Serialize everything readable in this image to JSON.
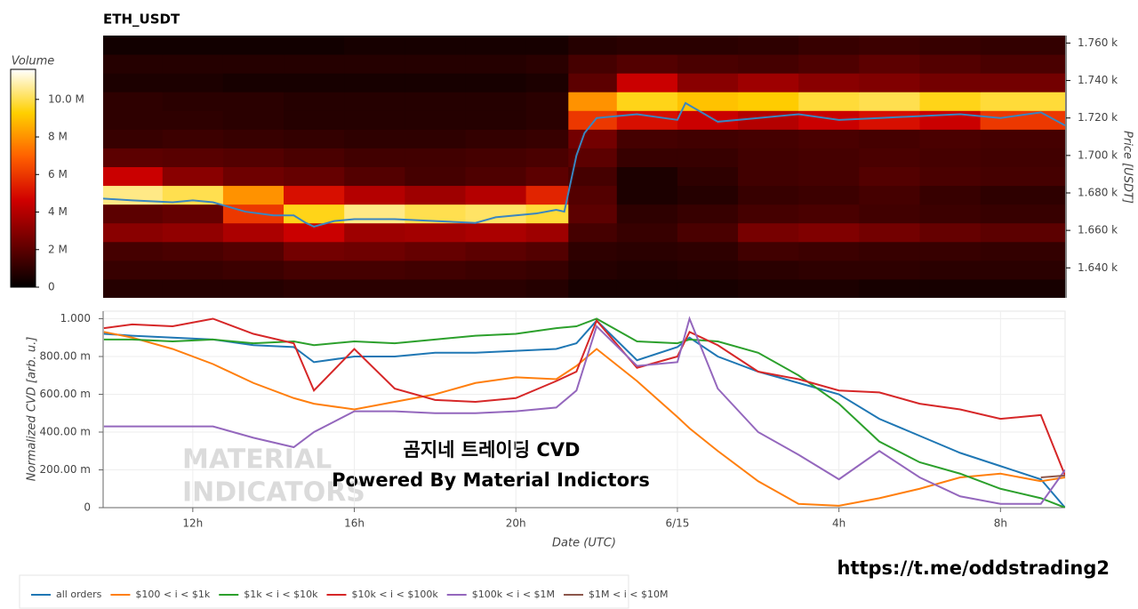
{
  "chart_data": [
    {
      "type": "heatmap",
      "title": "ETH_USDT",
      "ylabel": "Price [USDT]",
      "xlim": [
        9.78,
        33.6
      ],
      "ylim": [
        1624,
        1764
      ],
      "yticks": [
        {
          "value": 1640,
          "label": "1.640 k"
        },
        {
          "value": 1660,
          "label": "1.660 k"
        },
        {
          "value": 1680,
          "label": "1.680 k"
        },
        {
          "value": 1700,
          "label": "1.700 k"
        },
        {
          "value": 1720,
          "label": "1.720 k"
        },
        {
          "value": 1740,
          "label": "1.740 k"
        },
        {
          "value": 1760,
          "label": "1.760 k"
        }
      ],
      "xbins": [
        9.75,
        11.25,
        12.75,
        14.25,
        15.75,
        17.25,
        18.75,
        20.25,
        21.3,
        22.5,
        24,
        25.5,
        27,
        28.5,
        30,
        31.5,
        33.75
      ],
      "ybins": [
        1624,
        1634,
        1644,
        1654,
        1664,
        1674,
        1684,
        1694,
        1704,
        1714,
        1724,
        1734,
        1744,
        1754,
        1764
      ],
      "z": [
        [
          0.8,
          0.8,
          0.8,
          0.9,
          0.9,
          0.9,
          0.9,
          0.8,
          0.5,
          0.5,
          0.5,
          0.6,
          0.6,
          0.5,
          0.5,
          0.5
        ],
        [
          1.2,
          1.2,
          1.3,
          1.5,
          1.5,
          1.4,
          1.3,
          1.2,
          0.8,
          0.7,
          0.8,
          0.9,
          1.0,
          1.0,
          0.9,
          0.9
        ],
        [
          1.5,
          1.6,
          1.8,
          2.5,
          2.4,
          2.2,
          2.0,
          1.8,
          1.0,
          0.9,
          1.0,
          1.4,
          1.3,
          1.2,
          1.2,
          1.1
        ],
        [
          3.0,
          3.2,
          3.8,
          4.5,
          3.5,
          3.6,
          3.8,
          3.5,
          1.5,
          1.2,
          1.6,
          2.6,
          2.8,
          2.5,
          2.2,
          2.0
        ],
        [
          2.0,
          2.2,
          6.0,
          9.5,
          10.5,
          10.0,
          10.2,
          9.8,
          2.0,
          1.0,
          1.2,
          1.5,
          1.6,
          1.4,
          1.3,
          1.2
        ],
        [
          10.5,
          10.0,
          8.0,
          5.0,
          4.0,
          3.5,
          4.0,
          5.5,
          1.8,
          0.6,
          0.8,
          1.2,
          1.3,
          1.5,
          1.2,
          1.0
        ],
        [
          4.5,
          3.0,
          2.4,
          2.2,
          1.8,
          1.5,
          1.7,
          2.0,
          1.5,
          0.6,
          1.0,
          1.4,
          1.5,
          1.8,
          1.6,
          1.5
        ],
        [
          2.0,
          1.9,
          1.8,
          1.6,
          1.4,
          1.4,
          1.5,
          1.6,
          2.0,
          1.2,
          1.2,
          1.4,
          1.5,
          1.6,
          1.5,
          1.4
        ],
        [
          1.2,
          1.3,
          1.2,
          1.1,
          1.0,
          1.0,
          1.1,
          1.2,
          2.5,
          1.5,
          1.4,
          1.5,
          1.6,
          1.5,
          1.6,
          1.5
        ],
        [
          1.0,
          1.0,
          0.9,
          0.8,
          0.8,
          0.8,
          0.8,
          0.9,
          6.0,
          5.0,
          4.5,
          4.0,
          4.5,
          5.0,
          4.5,
          6.0
        ],
        [
          1.0,
          0.9,
          0.9,
          0.8,
          0.8,
          0.8,
          0.8,
          0.9,
          8.0,
          9.5,
          9.0,
          9.2,
          9.8,
          10.0,
          9.5,
          9.8
        ],
        [
          0.6,
          0.6,
          0.5,
          0.5,
          0.5,
          0.5,
          0.5,
          0.6,
          2.0,
          4.5,
          3.0,
          3.5,
          3.0,
          2.8,
          2.5,
          2.5
        ],
        [
          0.8,
          0.8,
          0.8,
          0.8,
          0.8,
          0.8,
          0.8,
          0.9,
          1.5,
          1.8,
          1.6,
          1.5,
          1.7,
          2.0,
          1.8,
          1.6
        ],
        [
          0.4,
          0.4,
          0.4,
          0.4,
          0.5,
          0.5,
          0.5,
          0.5,
          0.8,
          0.9,
          0.9,
          1.0,
          1.2,
          1.3,
          1.2,
          1.1
        ]
      ],
      "colorbar_label": "Volume",
      "clim": [
        0,
        11.6
      ],
      "colorbar_ticks": [
        0,
        {
          "value": 2,
          "label": "2 M"
        },
        {
          "value": 4,
          "label": "4 M"
        },
        {
          "value": 6,
          "label": "6 M"
        },
        {
          "value": 8,
          "label": "8 M"
        },
        {
          "value": 10,
          "label": "10.0 M"
        }
      ],
      "colorscale": [
        "#000000",
        "#6b0000",
        "#d00000",
        "#ff6000",
        "#ffd000",
        "#ffffff"
      ],
      "price_line": {
        "color": "#3a86c0",
        "x": [
          9.78,
          10.5,
          11.5,
          12,
          12.5,
          13.3,
          14,
          14.5,
          14.8,
          15.0,
          15.5,
          16,
          17,
          18,
          19,
          19.5,
          20.5,
          21,
          21.2,
          21.5,
          21.7,
          22,
          23,
          24,
          24.2,
          25,
          26,
          27,
          28,
          29,
          30,
          31,
          32,
          33,
          33.6
        ],
        "values": [
          1677,
          1676,
          1675,
          1676,
          1675,
          1670,
          1668,
          1668,
          1664,
          1662,
          1665,
          1666,
          1666,
          1665,
          1664,
          1667,
          1669,
          1671,
          1670,
          1700,
          1712,
          1720,
          1722,
          1719,
          1728,
          1718,
          1720,
          1722,
          1719,
          1720,
          1721,
          1722,
          1720,
          1723,
          1716
        ]
      }
    },
    {
      "type": "line",
      "xlabel": "Date (UTC)",
      "ylabel": "Normalized CVD [arb. u.]",
      "xlim": [
        9.78,
        33.6
      ],
      "ylim": [
        0,
        1.04
      ],
      "grid": true,
      "xticks": [
        {
          "value": 12,
          "label": "12h"
        },
        {
          "value": 16,
          "label": "16h"
        },
        {
          "value": 20,
          "label": "20h"
        },
        {
          "value": 24,
          "label": "6/15"
        },
        {
          "value": 28,
          "label": "4h"
        },
        {
          "value": 32,
          "label": "8h"
        }
      ],
      "yticks": [
        0,
        {
          "value": 0.2,
          "label": "200.00 m"
        },
        {
          "value": 0.4,
          "label": "400.00 m"
        },
        {
          "value": 0.6,
          "label": "600.00 m"
        },
        {
          "value": 0.8,
          "label": "800.00 m"
        },
        {
          "value": 1,
          "label": "1.000"
        }
      ],
      "x": [
        9.8,
        10.5,
        11.5,
        12.5,
        13.5,
        14.5,
        15,
        16,
        17,
        18,
        19,
        20,
        21,
        21.5,
        22,
        23,
        24,
        24.3,
        25,
        26,
        27,
        28,
        29,
        30,
        31,
        32,
        33,
        33.6
      ],
      "series": [
        {
          "name": "all orders",
          "color": "#1f77b4",
          "values": [
            0.92,
            0.91,
            0.9,
            0.89,
            0.86,
            0.85,
            0.77,
            0.8,
            0.8,
            0.82,
            0.82,
            0.83,
            0.84,
            0.87,
            0.99,
            0.78,
            0.85,
            0.9,
            0.8,
            0.72,
            0.66,
            0.6,
            0.47,
            0.38,
            0.29,
            0.22,
            0.15,
            0
          ]
        },
        {
          "name": "$100 < i < $1k",
          "color": "#ff7f0e",
          "values": [
            0.93,
            0.9,
            0.84,
            0.76,
            0.66,
            0.58,
            0.55,
            0.52,
            0.56,
            0.6,
            0.66,
            0.69,
            0.68,
            0.75,
            0.84,
            0.67,
            0.48,
            0.42,
            0.3,
            0.14,
            0.02,
            0.01,
            0.05,
            0.1,
            0.16,
            0.18,
            0.14,
            0.16
          ]
        },
        {
          "name": "$1k < i < $10k",
          "color": "#2ca02c",
          "values": [
            0.89,
            0.89,
            0.88,
            0.89,
            0.87,
            0.88,
            0.86,
            0.88,
            0.87,
            0.89,
            0.91,
            0.92,
            0.95,
            0.96,
            1.0,
            0.88,
            0.87,
            0.89,
            0.88,
            0.82,
            0.7,
            0.55,
            0.35,
            0.24,
            0.18,
            0.1,
            0.05,
            0
          ]
        },
        {
          "name": "$10k < i < $100k",
          "color": "#d62728",
          "values": [
            0.95,
            0.97,
            0.96,
            1.0,
            0.92,
            0.87,
            0.62,
            0.84,
            0.63,
            0.57,
            0.56,
            0.58,
            0.67,
            0.72,
            0.99,
            0.74,
            0.8,
            0.93,
            0.86,
            0.72,
            0.68,
            0.62,
            0.61,
            0.55,
            0.52,
            0.47,
            0.49,
            0.17
          ]
        },
        {
          "name": "$100k < i < $1M",
          "color": "#9467bd",
          "values": [
            0.43,
            0.43,
            0.43,
            0.43,
            0.37,
            0.32,
            0.4,
            0.51,
            0.51,
            0.5,
            0.5,
            0.51,
            0.53,
            0.62,
            0.96,
            0.75,
            0.77,
            1.0,
            0.63,
            0.4,
            0.28,
            0.15,
            0.3,
            0.16,
            0.06,
            0.02,
            0.02,
            0.2
          ]
        },
        {
          "name": "$1M < i < $10M",
          "color": "#8c564b",
          "values": [
            null,
            null,
            null,
            null,
            null,
            null,
            null,
            null,
            null,
            null,
            null,
            null,
            null,
            null,
            null,
            null,
            null,
            null,
            null,
            null,
            null,
            null,
            null,
            null,
            null,
            null,
            0.16,
            0.17
          ]
        }
      ]
    }
  ],
  "overlay": {
    "watermark": [
      "MATERIAL",
      "INDICATORS"
    ],
    "caption": "곰지네 트레이딩 CVD",
    "subcaption": "Powered By Material Indictors",
    "link": "https://t.me/oddstrading2"
  }
}
